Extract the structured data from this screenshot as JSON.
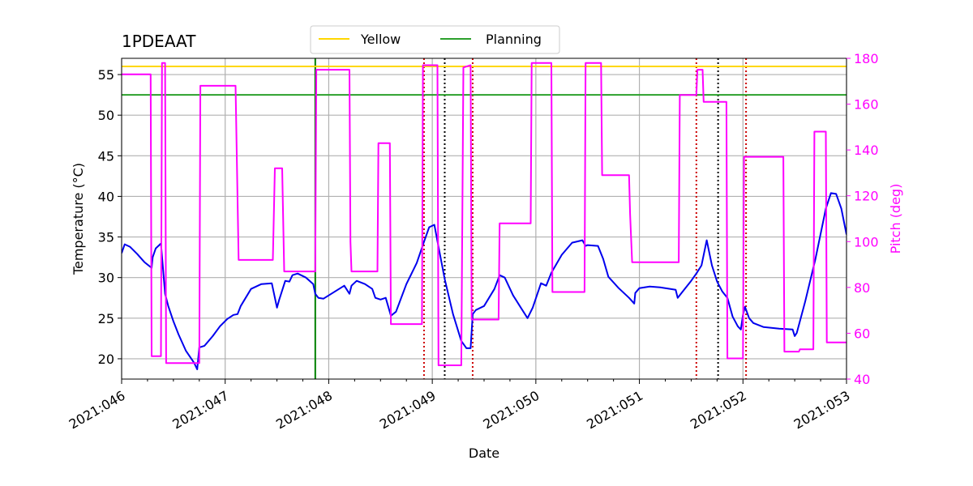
{
  "chart_data": {
    "type": "line",
    "title": "1PDEAAT",
    "xlabel": "Date",
    "ylabel": "Temperature ($^\\circ$C)",
    "ylabel_display": "Temperature (°C)",
    "y2label": "Pitch (deg)",
    "xlim": [
      46,
      53
    ],
    "ylim": [
      17.5,
      57
    ],
    "y2lim": [
      40,
      180
    ],
    "xticks": [
      46,
      47,
      48,
      49,
      50,
      51,
      52,
      53
    ],
    "xtick_labels": [
      "2021:046",
      "2021:047",
      "2021:048",
      "2021:049",
      "2021:050",
      "2021:051",
      "2021:052",
      "2021:053"
    ],
    "yticks": [
      20,
      25,
      30,
      35,
      40,
      45,
      50,
      55
    ],
    "y2ticks": [
      40,
      60,
      80,
      100,
      120,
      140,
      160,
      180
    ],
    "grid": true,
    "legend": {
      "placement": "top-center",
      "entries": [
        {
          "name": "Yellow",
          "color": "#ffd700"
        },
        {
          "name": "Planning",
          "color": "#2ca02c"
        }
      ]
    },
    "limits": [
      {
        "name": "Yellow",
        "value": 56.0,
        "color": "#ffd700"
      },
      {
        "name": "Planning",
        "value": 52.5,
        "color": "#2ca02c"
      }
    ],
    "vertical_markers": [
      {
        "x": 47.87,
        "color": "#008000",
        "style": "solid"
      },
      {
        "x": 48.92,
        "color": "#cc0000",
        "style": "dotted"
      },
      {
        "x": 49.12,
        "color": "#000000",
        "style": "dotted"
      },
      {
        "x": 49.39,
        "color": "#cc0000",
        "style": "dotted"
      },
      {
        "x": 51.55,
        "color": "#cc0000",
        "style": "dotted"
      },
      {
        "x": 51.76,
        "color": "#000000",
        "style": "dotted"
      },
      {
        "x": 52.03,
        "color": "#cc0000",
        "style": "dotted"
      }
    ],
    "series": [
      {
        "axis": "left",
        "color": "#0000ee",
        "x": [
          46.0,
          46.03,
          46.08,
          46.15,
          46.22,
          46.29,
          46.3,
          46.33,
          46.38,
          46.42,
          46.45,
          46.5,
          46.55,
          46.62,
          46.7,
          46.73,
          46.75,
          46.8,
          46.88,
          46.95,
          47.02,
          47.08,
          47.12,
          47.15,
          47.25,
          47.35,
          47.45,
          47.5,
          47.52,
          47.58,
          47.62,
          47.65,
          47.7,
          47.78,
          47.85,
          47.87,
          47.9,
          47.95,
          48.05,
          48.15,
          48.2,
          48.22,
          48.27,
          48.35,
          48.42,
          48.45,
          48.5,
          48.55,
          48.6,
          48.65,
          48.75,
          48.85,
          48.92,
          48.97,
          49.02,
          49.06,
          49.12,
          49.2,
          49.28,
          49.33,
          49.37,
          49.39,
          49.42,
          49.5,
          49.6,
          49.65,
          49.7,
          49.78,
          49.85,
          49.92,
          49.97,
          50.05,
          50.1,
          50.15,
          50.25,
          50.35,
          50.45,
          50.48,
          50.5,
          50.6,
          50.65,
          50.7,
          50.8,
          50.9,
          50.95,
          50.96,
          51.0,
          51.1,
          51.2,
          51.35,
          51.37,
          51.4,
          51.5,
          51.55,
          51.6,
          51.65,
          51.7,
          51.75,
          51.8,
          51.85,
          51.9,
          51.95,
          51.98,
          52.0,
          52.02,
          52.06,
          52.1,
          52.2,
          52.35,
          52.48,
          52.5,
          52.52,
          52.6,
          52.7,
          52.8,
          52.85,
          52.9,
          52.95,
          53.0
        ],
        "y": [
          33.0,
          34.1,
          33.8,
          32.9,
          31.9,
          31.2,
          32.5,
          33.6,
          34.2,
          28.0,
          26.5,
          24.6,
          23.0,
          21.0,
          19.5,
          18.7,
          21.4,
          21.6,
          22.8,
          24.0,
          24.9,
          25.4,
          25.5,
          26.5,
          28.6,
          29.2,
          29.3,
          26.3,
          27.2,
          29.6,
          29.5,
          30.3,
          30.5,
          30.0,
          29.2,
          28.0,
          27.5,
          27.4,
          28.2,
          29.0,
          28.0,
          29.0,
          29.6,
          29.2,
          28.6,
          27.5,
          27.3,
          27.5,
          25.3,
          25.8,
          29.2,
          31.8,
          34.4,
          36.2,
          36.5,
          33.8,
          29.8,
          25.5,
          22.2,
          21.3,
          21.3,
          25.5,
          26.0,
          26.5,
          28.6,
          30.3,
          30.0,
          27.8,
          26.4,
          25.0,
          26.3,
          29.3,
          29.0,
          30.6,
          32.8,
          34.3,
          34.6,
          33.9,
          34.0,
          33.9,
          32.3,
          30.1,
          28.7,
          27.5,
          26.8,
          28.1,
          28.7,
          28.9,
          28.8,
          28.5,
          27.5,
          28.0,
          29.6,
          30.5,
          31.5,
          34.6,
          31.5,
          29.5,
          28.3,
          27.5,
          25.2,
          24.0,
          23.6,
          25.4,
          26.4,
          25.0,
          24.4,
          23.9,
          23.7,
          23.6,
          22.8,
          23.2,
          27.0,
          32.3,
          38.5,
          40.4,
          40.3,
          38.5,
          35.3
        ]
      },
      {
        "axis": "right",
        "color": "#ff00ff",
        "x": [
          46.0,
          46.28,
          46.29,
          46.3,
          46.38,
          46.39,
          46.42,
          46.43,
          46.45,
          46.62,
          46.73,
          46.75,
          46.76,
          47.1,
          47.13,
          47.14,
          47.46,
          47.48,
          47.55,
          47.57,
          47.6,
          47.85,
          47.87,
          47.88,
          48.2,
          48.21,
          48.22,
          48.47,
          48.48,
          48.5,
          48.59,
          48.6,
          48.9,
          48.91,
          48.93,
          49.05,
          49.06,
          49.08,
          49.28,
          49.3,
          49.37,
          49.38,
          49.41,
          49.64,
          49.65,
          49.95,
          49.96,
          50.15,
          50.16,
          50.47,
          50.48,
          50.63,
          50.64,
          50.9,
          50.91,
          50.93,
          51.38,
          51.39,
          51.55,
          51.56,
          51.61,
          51.62,
          51.84,
          51.85,
          51.99,
          52.0,
          52.01,
          52.39,
          52.4,
          52.54,
          52.55,
          52.68,
          52.69,
          52.8,
          52.81,
          52.92,
          52.93,
          53.0
        ],
        "y": [
          173.0,
          173.0,
          50.0,
          50.0,
          50.0,
          178.0,
          178.0,
          47.0,
          47.0,
          47.0,
          47.0,
          47.0,
          168.0,
          168.0,
          92.0,
          92.0,
          92.0,
          132.0,
          132.0,
          87.0,
          87.0,
          87.0,
          87.0,
          175.0,
          175.0,
          100.0,
          87.0,
          87.0,
          143.0,
          143.0,
          143.0,
          64.0,
          64.0,
          177.0,
          177.0,
          177.0,
          46.0,
          46.0,
          46.0,
          176.0,
          177.0,
          66.0,
          66.0,
          66.0,
          108.0,
          108.0,
          178.0,
          178.0,
          78.0,
          78.0,
          178.0,
          178.0,
          129.0,
          129.0,
          112.0,
          91.0,
          91.0,
          164.0,
          164.0,
          175.0,
          175.0,
          161.0,
          161.0,
          49.0,
          49.0,
          49.0,
          137.0,
          137.0,
          52.0,
          52.0,
          53.0,
          53.0,
          148.0,
          148.0,
          56.0,
          56.0,
          56.0,
          56.0
        ]
      }
    ]
  }
}
